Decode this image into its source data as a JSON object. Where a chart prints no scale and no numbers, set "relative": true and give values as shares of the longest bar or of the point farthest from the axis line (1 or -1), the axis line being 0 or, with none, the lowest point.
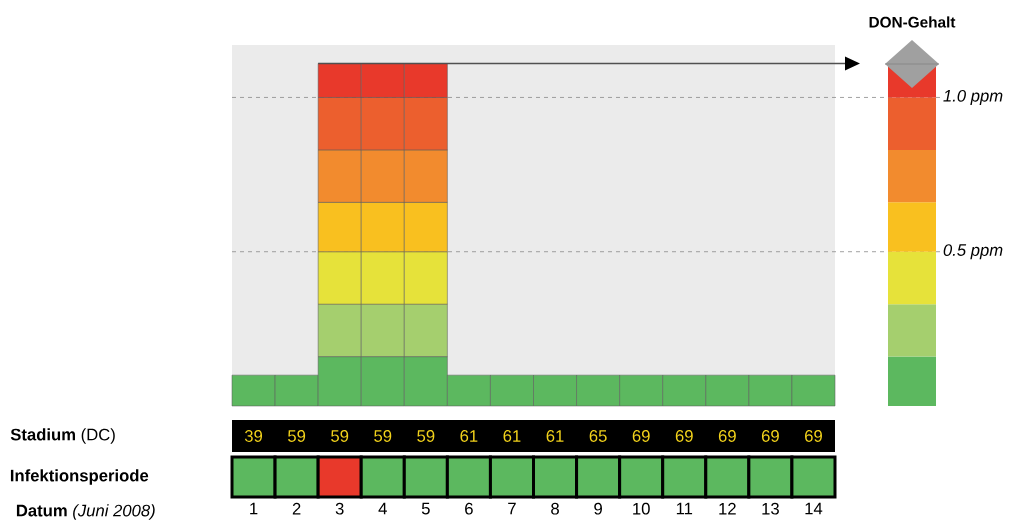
{
  "chart_data": [
    {
      "type": "bar",
      "stacked": true,
      "categories": [
        null,
        null,
        null,
        null,
        null,
        null,
        null,
        null,
        null,
        null,
        null,
        null,
        null,
        null
      ],
      "ylim": [
        0,
        1.17
      ],
      "series": [
        {
          "color": "#5cb85f",
          "values": [
            0.1,
            0.1,
            0.16,
            0.16,
            0.16,
            0.1,
            0.1,
            0.1,
            0.1,
            0.1,
            0.1,
            0.1,
            0.1,
            0.1
          ]
        },
        {
          "color": "#a5cf6e",
          "values": [
            null,
            null,
            0.17,
            0.17,
            0.17,
            null,
            null,
            null,
            null,
            null,
            null,
            null,
            null,
            null
          ]
        },
        {
          "color": "#e6e23a",
          "values": [
            null,
            null,
            0.17,
            0.17,
            0.17,
            null,
            null,
            null,
            null,
            null,
            null,
            null,
            null,
            null
          ]
        },
        {
          "color": "#f9c01f",
          "values": [
            null,
            null,
            0.16,
            0.16,
            0.16,
            null,
            null,
            null,
            null,
            null,
            null,
            null,
            null,
            null
          ]
        },
        {
          "color": "#f28b2e",
          "values": [
            null,
            null,
            0.17,
            0.17,
            0.17,
            null,
            null,
            null,
            null,
            null,
            null,
            null,
            null,
            null
          ]
        },
        {
          "color": "#ec5f2e",
          "values": [
            null,
            null,
            0.17,
            0.17,
            0.17,
            null,
            null,
            null,
            null,
            null,
            null,
            null,
            null,
            null
          ]
        },
        {
          "color": "#e8392b",
          "values": [
            null,
            null,
            0.11,
            0.11,
            0.11,
            null,
            null,
            null,
            null,
            null,
            null,
            null,
            null,
            null
          ]
        }
      ],
      "ref_lines": [
        {
          "axis": "y",
          "value": 1.0,
          "label": "1.0 ppm",
          "line_style": "dashed",
          "color": "#8a8a8a"
        },
        {
          "axis": "y",
          "value": 0.5,
          "label": "0.5 ppm",
          "line_style": "dashed",
          "color": "#8a8a8a"
        },
        {
          "axis": "y",
          "value": 1.11,
          "line_style": "solid",
          "color": "#505050"
        }
      ],
      "annotations": [
        "DON-Gehalt"
      ]
    },
    {
      "type": "other",
      "ylabel": "**Stadium** (DC)",
      "data_labels": true,
      "values": [
        39,
        59,
        59,
        59,
        59,
        61,
        61,
        61,
        65,
        69,
        69,
        69,
        69,
        69
      ]
    },
    {
      "type": "bar",
      "relative": true,
      "categories": [
        "1",
        "2",
        "3",
        "4",
        "5",
        "6",
        "7",
        "8",
        "9",
        "10",
        "11",
        "12",
        "13",
        "14"
      ],
      "ylabel": "**Infektionsperiode**",
      "xlabel": "**Datum** *(Juni 2008)*",
      "values": [
        1,
        1,
        1,
        1,
        1,
        1,
        1,
        1,
        1,
        1,
        1,
        1,
        1,
        1
      ],
      "colors": [
        "#5cb85f",
        "#5cb85f",
        "#e8392b",
        "#5cb85f",
        "#5cb85f",
        "#5cb85f",
        "#5cb85f",
        "#5cb85f",
        "#5cb85f",
        "#5cb85f",
        "#5cb85f",
        "#5cb85f",
        "#5cb85f",
        "#5cb85f"
      ]
    }
  ]
}
